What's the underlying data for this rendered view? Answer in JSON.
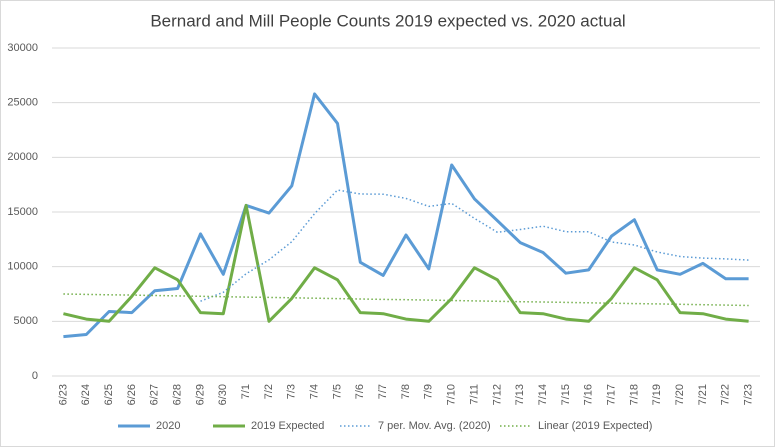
{
  "chart_data": {
    "type": "line",
    "title": "Bernard and Mill People Counts 2019 expected vs. 2020 actual",
    "categories": [
      "6/23",
      "6/24",
      "6/25",
      "6/26",
      "6/27",
      "6/28",
      "6/29",
      "6/30",
      "7/1",
      "7/2",
      "7/3",
      "7/4",
      "7/5",
      "7/6",
      "7/7",
      "7/8",
      "7/9",
      "7/10",
      "7/11",
      "7/12",
      "7/13",
      "7/14",
      "7/15",
      "7/16",
      "7/17",
      "7/18",
      "7/19",
      "7/20",
      "7/21",
      "7/22",
      "7/23"
    ],
    "series": [
      {
        "name": "2020",
        "color": "#5b9bd5",
        "dash": "solid",
        "values": [
          3600,
          3800,
          5900,
          5800,
          7800,
          8000,
          13000,
          9300,
          15600,
          14900,
          17400,
          25800,
          23100,
          10400,
          9200,
          12900,
          9800,
          19300,
          16200,
          14200,
          12200,
          11300,
          9400,
          9700,
          12800,
          14300,
          9700,
          9300,
          10300,
          8900,
          8900
        ]
      },
      {
        "name": "2019 Expected",
        "color": "#70ad47",
        "dash": "solid",
        "values": [
          5700,
          5200,
          5000,
          7300,
          9900,
          8800,
          5800,
          5700,
          15600,
          5000,
          7100,
          9900,
          8800,
          5800,
          5700,
          5200,
          5000,
          7100,
          9900,
          8800,
          5800,
          5700,
          5200,
          5000,
          7100,
          9900,
          8800,
          5800,
          5700,
          5200,
          5000
        ]
      },
      {
        "name": "7 per. Mov. Avg. (2020)",
        "color": "#5b9bd5",
        "dash": "dotted",
        "values": [
          null,
          null,
          null,
          null,
          null,
          null,
          6843,
          7657,
          9343,
          10629,
          12286,
          14857,
          17014,
          16643,
          16629,
          16243,
          15514,
          15786,
          14414,
          13143,
          13400,
          13700,
          13200,
          13186,
          12257,
          11986,
          11343,
          10929,
          10786,
          10714,
          10600
        ]
      },
      {
        "name": "Linear (2019 Expected)",
        "color": "#70ad47",
        "dash": "dotted",
        "values": [
          7500,
          7465,
          7430,
          7395,
          7360,
          7325,
          7290,
          7255,
          7220,
          7185,
          7150,
          7115,
          7080,
          7045,
          7010,
          6975,
          6940,
          6905,
          6870,
          6835,
          6800,
          6765,
          6730,
          6695,
          6660,
          6625,
          6590,
          6555,
          6520,
          6485,
          6450
        ]
      }
    ],
    "ylim": [
      0,
      30000
    ],
    "yticks": [
      0,
      5000,
      10000,
      15000,
      20000,
      25000,
      30000
    ],
    "grid": true,
    "legend": "bottom"
  }
}
